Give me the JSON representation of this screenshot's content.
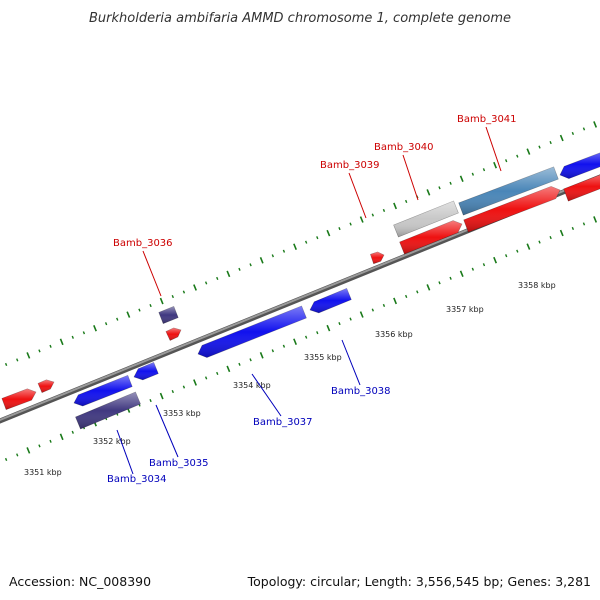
{
  "title": "Burkholderia ambifaria AMMD chromosome 1, complete genome",
  "footer": {
    "accession": "Accession: NC_008390",
    "summary": "Topology: circular; Length: 3,556,545 bp; Genes: 3,281"
  },
  "colors": {
    "forward": "#ee1111",
    "reverse": "#1111ee",
    "dark_gene": "#403880",
    "grey_gene": "#c8c8c8",
    "steel_gene": "#4a86b8",
    "backbone": "#777777",
    "ticks": "#1a7a1a",
    "label_forward": "#cc0000",
    "label_reverse": "#0000bb"
  },
  "scale_ticks": [
    "3351 kbp",
    "3352 kbp",
    "3353 kbp",
    "3354 kbp",
    "3355 kbp",
    "3356 kbp",
    "3357 kbp",
    "3358 kbp"
  ],
  "gene_labels": {
    "forward": [
      "Bamb_3036",
      "Bamb_3039",
      "Bamb_3040",
      "Bamb_3041"
    ],
    "reverse": [
      "Bamb_3034",
      "Bamb_3035",
      "Bamb_3037",
      "Bamb_3038"
    ]
  }
}
